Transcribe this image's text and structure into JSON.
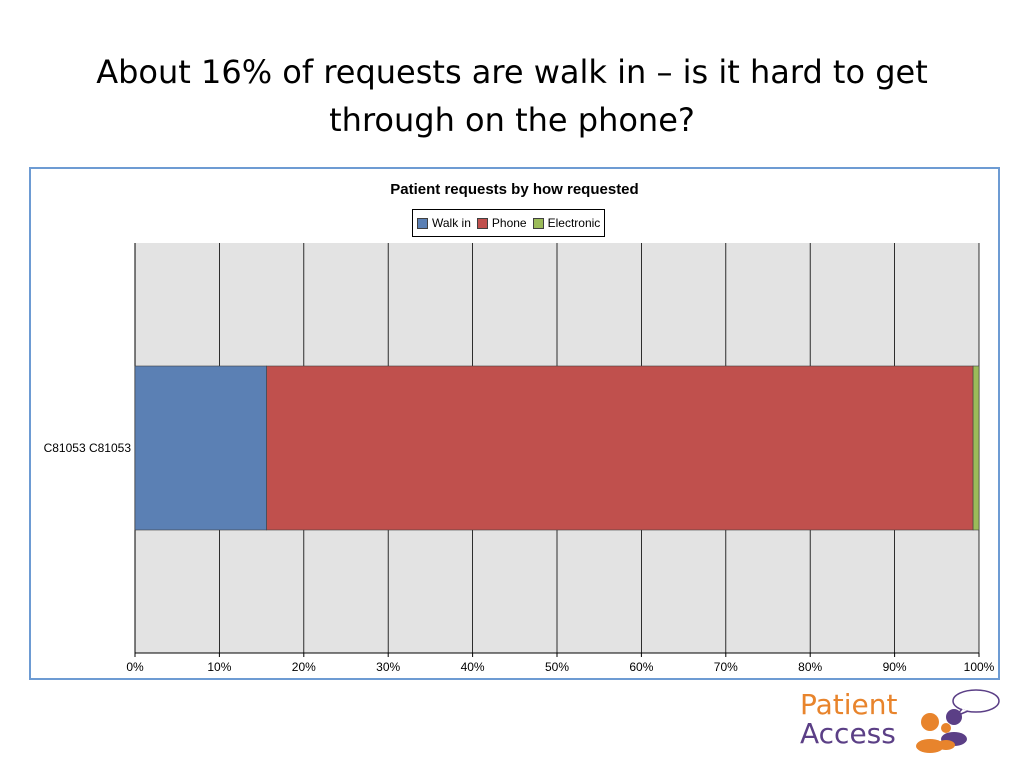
{
  "slide": {
    "title_line1": "About 16% of requests are walk in – is it hard to get",
    "title_line2": "through on the phone?"
  },
  "logo": {
    "line1": "Patient",
    "line2": "Access"
  },
  "colors": {
    "frame_border": "#6d9bd3",
    "plot_background": "#e3e3e3",
    "walk_in": "#5b80b4",
    "phone": "#c0504d",
    "electronic": "#9bbb59",
    "logo_orange": "#e8842c",
    "logo_purple": "#5b3f86"
  },
  "chart_data": {
    "type": "bar",
    "orientation": "horizontal",
    "stacking": "100% stacked",
    "title": "Patient requests by how requested",
    "categories": [
      "C81053 C81053"
    ],
    "series": [
      {
        "name": "Walk in",
        "values": [
          15.6
        ],
        "color": "#5b80b4"
      },
      {
        "name": "Phone",
        "values": [
          83.7
        ],
        "color": "#c0504d"
      },
      {
        "name": "Electronic",
        "values": [
          0.7
        ],
        "color": "#9bbb59"
      }
    ],
    "xlim": [
      0,
      100
    ],
    "x_ticks": [
      "0%",
      "10%",
      "20%",
      "30%",
      "40%",
      "50%",
      "60%",
      "70%",
      "80%",
      "90%",
      "100%"
    ],
    "xlabel": "",
    "ylabel": "",
    "grid": "vertical",
    "legend": {
      "placement": "top-center",
      "entries": [
        "Walk in",
        "Phone",
        "Electronic"
      ]
    }
  }
}
